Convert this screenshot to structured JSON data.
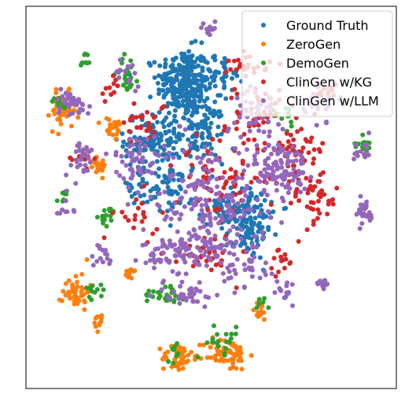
{
  "chart_data": {
    "type": "scatter",
    "title": "",
    "xlabel": "",
    "ylabel": "",
    "grid": false,
    "axis_ticks": false,
    "xlim": [
      -100,
      100
    ],
    "ylim": [
      -100,
      100
    ],
    "legend_position": "top-right",
    "series": [
      {
        "name": "Ground Truth",
        "color": "#1f77b4",
        "clusters": [
          {
            "center": [
              -15,
              60
            ],
            "spread": [
              12,
              15
            ],
            "count": 260
          },
          {
            "center": [
              -30,
              30
            ],
            "spread": [
              14,
              12
            ],
            "count": 120
          },
          {
            "center": [
              -5,
              35
            ],
            "spread": [
              10,
              14
            ],
            "count": 110
          },
          {
            "center": [
              -22,
              5
            ],
            "spread": [
              10,
              12
            ],
            "count": 60
          },
          {
            "center": [
              15,
              -5
            ],
            "spread": [
              14,
              8
            ],
            "count": 90
          },
          {
            "center": [
              20,
              -20
            ],
            "spread": [
              10,
              10
            ],
            "count": 70
          },
          {
            "center": [
              -40,
              5
            ],
            "spread": [
              8,
              8
            ],
            "count": 20
          },
          {
            "center": [
              5,
              65
            ],
            "spread": [
              10,
              8
            ],
            "count": 40
          }
        ]
      },
      {
        "name": "ZeroGen",
        "color": "#ff7f0e",
        "clusters": [
          {
            "center": [
              -80,
              45
            ],
            "spread": [
              6,
              8
            ],
            "count": 45
          },
          {
            "center": [
              -53,
              36
            ],
            "spread": [
              5,
              5
            ],
            "count": 22
          },
          {
            "center": [
              -62,
              18
            ],
            "spread": [
              6,
              5
            ],
            "count": 22
          },
          {
            "center": [
              -73,
              -49
            ],
            "spread": [
              6,
              8
            ],
            "count": 45
          },
          {
            "center": [
              -60,
              -65
            ],
            "spread": [
              3,
              4
            ],
            "count": 10
          },
          {
            "center": [
              -18,
              -84
            ],
            "spread": [
              7,
              6
            ],
            "count": 45
          },
          {
            "center": [
              8,
              -82
            ],
            "spread": [
              10,
              7
            ],
            "count": 70
          },
          {
            "center": [
              26,
              -60
            ],
            "spread": [
              4,
              4
            ],
            "count": 16
          },
          {
            "center": [
              -43,
              -40
            ],
            "spread": [
              3,
              3
            ],
            "count": 10
          }
        ]
      },
      {
        "name": "DemoGen",
        "color": "#2ca02c",
        "clusters": [
          {
            "center": [
              -45,
              65
            ],
            "spread": [
              5,
              8
            ],
            "count": 22
          },
          {
            "center": [
              -68,
              72
            ],
            "spread": [
              3,
              4
            ],
            "count": 10
          },
          {
            "center": [
              -82,
              49
            ],
            "spread": [
              4,
              3
            ],
            "count": 12
          },
          {
            "center": [
              -55,
              -10
            ],
            "spread": [
              4,
              4
            ],
            "count": 15
          },
          {
            "center": [
              -80,
              0
            ],
            "spread": [
              3,
              3
            ],
            "count": 8
          },
          {
            "center": [
              -63,
              -49
            ],
            "spread": [
              5,
              4
            ],
            "count": 12
          },
          {
            "center": [
              -25,
              -50
            ],
            "spread": [
              10,
              5
            ],
            "count": 25
          },
          {
            "center": [
              83,
              28
            ],
            "spread": [
              4,
              5
            ],
            "count": 14
          },
          {
            "center": [
              5,
              -75
            ],
            "spread": [
              10,
              6
            ],
            "count": 20
          },
          {
            "center": [
              40,
              43
            ],
            "spread": [
              6,
              6
            ],
            "count": 12
          },
          {
            "center": [
              -20,
              -80
            ],
            "spread": [
              6,
              5
            ],
            "count": 10
          },
          {
            "center": [
              28,
              -55
            ],
            "spread": [
              4,
              4
            ],
            "count": 6
          }
        ]
      },
      {
        "name": "ClinGen w/KG",
        "color": "#d62728",
        "clusters": [
          {
            "center": [
              25,
              45
            ],
            "spread": [
              10,
              12
            ],
            "count": 45
          },
          {
            "center": [
              48,
              25
            ],
            "spread": [
              12,
              12
            ],
            "count": 50
          },
          {
            "center": [
              5,
              10
            ],
            "spread": [
              20,
              18
            ],
            "count": 70
          },
          {
            "center": [
              55,
              0
            ],
            "spread": [
              12,
              12
            ],
            "count": 45
          },
          {
            "center": [
              -35,
              40
            ],
            "spread": [
              10,
              10
            ],
            "count": 25
          },
          {
            "center": [
              -5,
              -30
            ],
            "spread": [
              15,
              10
            ],
            "count": 30
          },
          {
            "center": [
              -40,
              -10
            ],
            "spread": [
              10,
              10
            ],
            "count": 20
          },
          {
            "center": [
              20,
              70
            ],
            "spread": [
              10,
              5
            ],
            "count": 25
          },
          {
            "center": [
              62,
              55
            ],
            "spread": [
              5,
              5
            ],
            "count": 15
          },
          {
            "center": [
              -55,
              55
            ],
            "spread": [
              6,
              6
            ],
            "count": 10
          },
          {
            "center": [
              40,
              -35
            ],
            "spread": [
              8,
              8
            ],
            "count": 15
          },
          {
            "center": [
              -70,
              20
            ],
            "spread": [
              6,
              6
            ],
            "count": 10
          }
        ]
      },
      {
        "name": "ClinGen w/LLM",
        "color": "#9467bd",
        "clusters": [
          {
            "center": [
              0,
              0
            ],
            "spread": [
              25,
              25
            ],
            "count": 170
          },
          {
            "center": [
              38,
              15
            ],
            "spread": [
              12,
              12
            ],
            "count": 110
          },
          {
            "center": [
              -10,
              -28
            ],
            "spread": [
              22,
              10
            ],
            "count": 120
          },
          {
            "center": [
              -40,
              20
            ],
            "spread": [
              10,
              10
            ],
            "count": 50
          },
          {
            "center": [
              -75,
              50
            ],
            "spread": [
              8,
              6
            ],
            "count": 35
          },
          {
            "center": [
              -70,
              20
            ],
            "spread": [
              8,
              8
            ],
            "count": 30
          },
          {
            "center": [
              82,
              -8
            ],
            "spread": [
              5,
              6
            ],
            "count": 30
          },
          {
            "center": [
              25,
              45
            ],
            "spread": [
              10,
              10
            ],
            "count": 40
          },
          {
            "center": [
              -45,
              65
            ],
            "spread": [
              6,
              6
            ],
            "count": 15
          },
          {
            "center": [
              -12,
              -50
            ],
            "spread": [
              15,
              6
            ],
            "count": 35
          },
          {
            "center": [
              20,
              -40
            ],
            "spread": [
              10,
              8
            ],
            "count": 25
          },
          {
            "center": [
              40,
              -50
            ],
            "spread": [
              6,
              6
            ],
            "count": 15
          },
          {
            "center": [
              -58,
              -30
            ],
            "spread": [
              6,
              6
            ],
            "count": 15
          },
          {
            "center": [
              60,
              -45
            ],
            "spread": [
              3,
              3
            ],
            "count": 12
          },
          {
            "center": [
              82,
              25
            ],
            "spread": [
              4,
              5
            ],
            "count": 14
          },
          {
            "center": [
              60,
              50
            ],
            "spread": [
              8,
              8
            ],
            "count": 25
          },
          {
            "center": [
              -2,
              88
            ],
            "spread": [
              5,
              3
            ],
            "count": 12
          },
          {
            "center": [
              -80,
              -5
            ],
            "spread": [
              5,
              5
            ],
            "count": 10
          }
        ]
      }
    ]
  }
}
